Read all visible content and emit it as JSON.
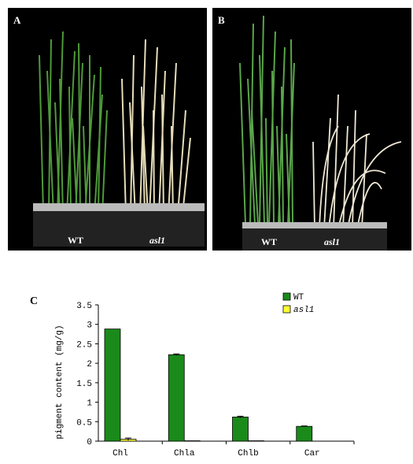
{
  "panels": {
    "a": {
      "letter": "A",
      "left_label": "WT",
      "right_label": "asl1"
    },
    "b": {
      "letter": "B",
      "left_label": "WT",
      "right_label": "asl1"
    },
    "c": {
      "letter": "C"
    }
  },
  "colors": {
    "wt": "#1a8a1a",
    "asl1": "#ffff33",
    "photo_bg": "#000000"
  },
  "chart_data": {
    "type": "bar",
    "categories": [
      "Chl",
      "Chla",
      "Chlb",
      "Car"
    ],
    "series": [
      {
        "name": "WT",
        "values": [
          2.88,
          2.22,
          0.62,
          0.38
        ],
        "errors": [
          0.0,
          0.02,
          0.02,
          0.01
        ]
      },
      {
        "name": "asl1",
        "values": [
          0.05,
          0.01,
          0.01,
          0.0
        ],
        "errors": [
          0.03,
          0.0,
          0.0,
          0.0
        ]
      }
    ],
    "ylabel": "pigment content (mg/g)",
    "ylim": [
      0,
      3.5
    ],
    "yticks": [
      "0",
      "0.5",
      "1",
      "1.5",
      "2",
      "2.5",
      "3",
      "3.5"
    ],
    "legend": "top-right"
  }
}
